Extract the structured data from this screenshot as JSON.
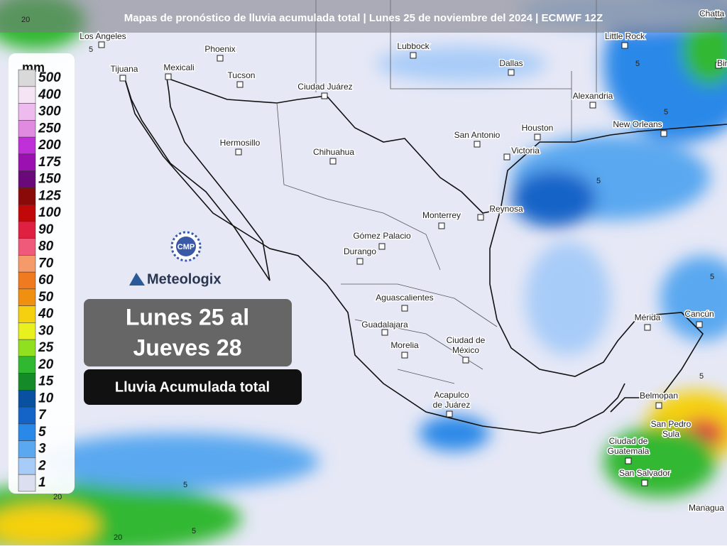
{
  "header": {
    "title": "Mapas de pronóstico de lluvia acumulada total | Lunes 25 de noviembre del 2024 | ECMWF 12Z"
  },
  "legend": {
    "unit": "mm",
    "items": [
      {
        "label": "500",
        "color": "#d9d9d9"
      },
      {
        "label": "400",
        "color": "#f4e4f4"
      },
      {
        "label": "300",
        "color": "#eebbee"
      },
      {
        "label": "250",
        "color": "#e08ae0"
      },
      {
        "label": "200",
        "color": "#c030d8"
      },
      {
        "label": "175",
        "color": "#9a10b0"
      },
      {
        "label": "150",
        "color": "#6a0a7a"
      },
      {
        "label": "125",
        "color": "#8a0a0a"
      },
      {
        "label": "100",
        "color": "#c00808"
      },
      {
        "label": "90",
        "color": "#e02040"
      },
      {
        "label": "80",
        "color": "#f05a7a"
      },
      {
        "label": "70",
        "color": "#f59a6a"
      },
      {
        "label": "60",
        "color": "#f07a20"
      },
      {
        "label": "50",
        "color": "#f09010"
      },
      {
        "label": "40",
        "color": "#f5d010"
      },
      {
        "label": "30",
        "color": "#e8f020"
      },
      {
        "label": "25",
        "color": "#90e020"
      },
      {
        "label": "20",
        "color": "#30b830"
      },
      {
        "label": "15",
        "color": "#148a28"
      },
      {
        "label": "10",
        "color": "#0a50a0"
      },
      {
        "label": "7",
        "color": "#1464c8"
      },
      {
        "label": "5",
        "color": "#2a88e8"
      },
      {
        "label": "3",
        "color": "#5aa8f0"
      },
      {
        "label": "2",
        "color": "#a8ccf8"
      },
      {
        "label": "1",
        "color": "#dcdff0"
      }
    ]
  },
  "branding": {
    "logo": "CMP",
    "name": "Meteologix"
  },
  "info_box": {
    "lines": [
      "Lunes 25 al",
      "Jueves 28"
    ],
    "subtitle": "Lluvia Acumulada total"
  },
  "cities": [
    [
      "Los Angeles"
    ],
    [
      "Phoenix"
    ],
    [
      "Tucson"
    ],
    [
      "Lubbock"
    ],
    [
      "Dallas"
    ],
    [
      "Little Rock"
    ],
    [
      "Tijuana"
    ],
    [
      "Mexicali"
    ],
    [
      "Ciudad Juárez"
    ],
    [
      "Alexandria"
    ],
    [
      "Hermosillo"
    ],
    [
      "Chihuahua"
    ],
    [
      "San Antonio"
    ],
    [
      "Houston"
    ],
    [
      "Victoria"
    ],
    [
      "New Orleans"
    ],
    [
      "Monterrey"
    ],
    [
      "Reynosa"
    ],
    [
      "Gómez Palacio"
    ],
    [
      "Durango"
    ],
    [
      "Aguascalientes"
    ],
    [
      "Guadalajara"
    ],
    [
      "Morelia"
    ],
    [
      "Ciudad de",
      "México"
    ],
    [
      "Acapulco",
      "de Juárez"
    ],
    [
      "Mérida"
    ],
    [
      "Cancún"
    ],
    [
      "Belmopan"
    ],
    [
      "San Pedro",
      "Sula"
    ],
    [
      "Ciudad de",
      "Guatemala"
    ],
    [
      "San Salvador"
    ],
    [
      "Managua"
    ],
    [
      "Birm"
    ],
    [
      "Chatta"
    ]
  ],
  "contour_labels": [
    "20",
    "5",
    "5",
    "5",
    "5",
    "5",
    "5",
    "5",
    "20",
    "5",
    "20"
  ]
}
